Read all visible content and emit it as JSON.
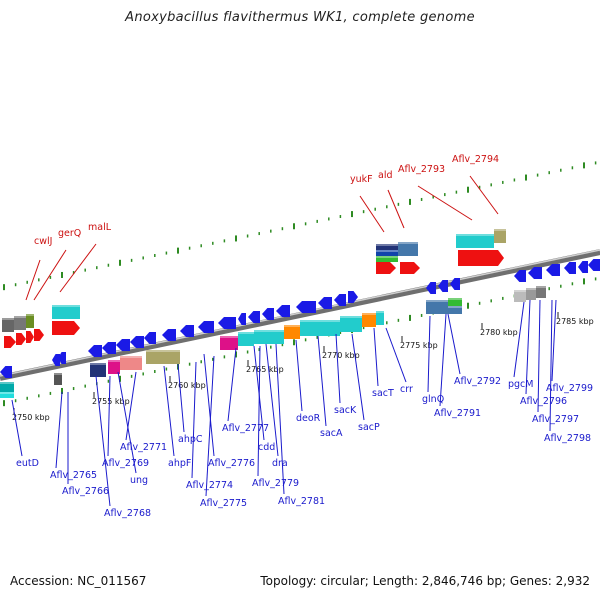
{
  "header": {
    "title": "Anoxybacillus flavithermus WK1, complete genome"
  },
  "footer": {
    "accession": "Accession: NC_011567",
    "topology": "Topology: circular; Length: 2,846,746 bp; Genes: 2,932"
  },
  "colors": {
    "backbone": "#888888",
    "tick_green": "#2e8b22",
    "label_blue": "#1a1acc",
    "label_red": "#cc1111",
    "feature_blue": "#1a1ae6",
    "feature_red": "#ee1111",
    "feature_cyan": "#22cccc",
    "feature_navy": "#223377",
    "feature_steelblue": "#4477aa",
    "feature_olive": "#aaa466",
    "feature_salmon": "#ee8888",
    "feature_magenta": "#dd1188",
    "feature_orange": "#ff8800",
    "feature_green": "#33bb33"
  },
  "kbp_labels": [
    "2750 kbp",
    "2755 kbp",
    "2760 kbp",
    "2765 kbp",
    "2770 kbp",
    "2775 kbp",
    "2780 kbp",
    "2785 kbp"
  ],
  "red_labels": [
    "cwlJ",
    "gerQ",
    "malL",
    "yukF",
    "ald",
    "Aflv_2793",
    "Aflv_2794"
  ],
  "blue_labels": [
    "eutD",
    "Aflv_2765",
    "Aflv_2766",
    "Aflv_2768",
    "Aflv_2769",
    "ung",
    "Aflv_2771",
    "ahpF",
    "ahpC",
    "Aflv_2774",
    "Aflv_2775",
    "Aflv_2776",
    "Aflv_2777",
    "cdd",
    "Aflv_2779",
    "dra",
    "Aflv_2781",
    "deoR",
    "sacA",
    "sacK",
    "sacP",
    "sacT",
    "crr",
    "glnQ",
    "Aflv_2791",
    "Aflv_2792",
    "pgcM",
    "Aflv_2796",
    "Aflv_2797",
    "Aflv_2798",
    "Aflv_2799"
  ]
}
